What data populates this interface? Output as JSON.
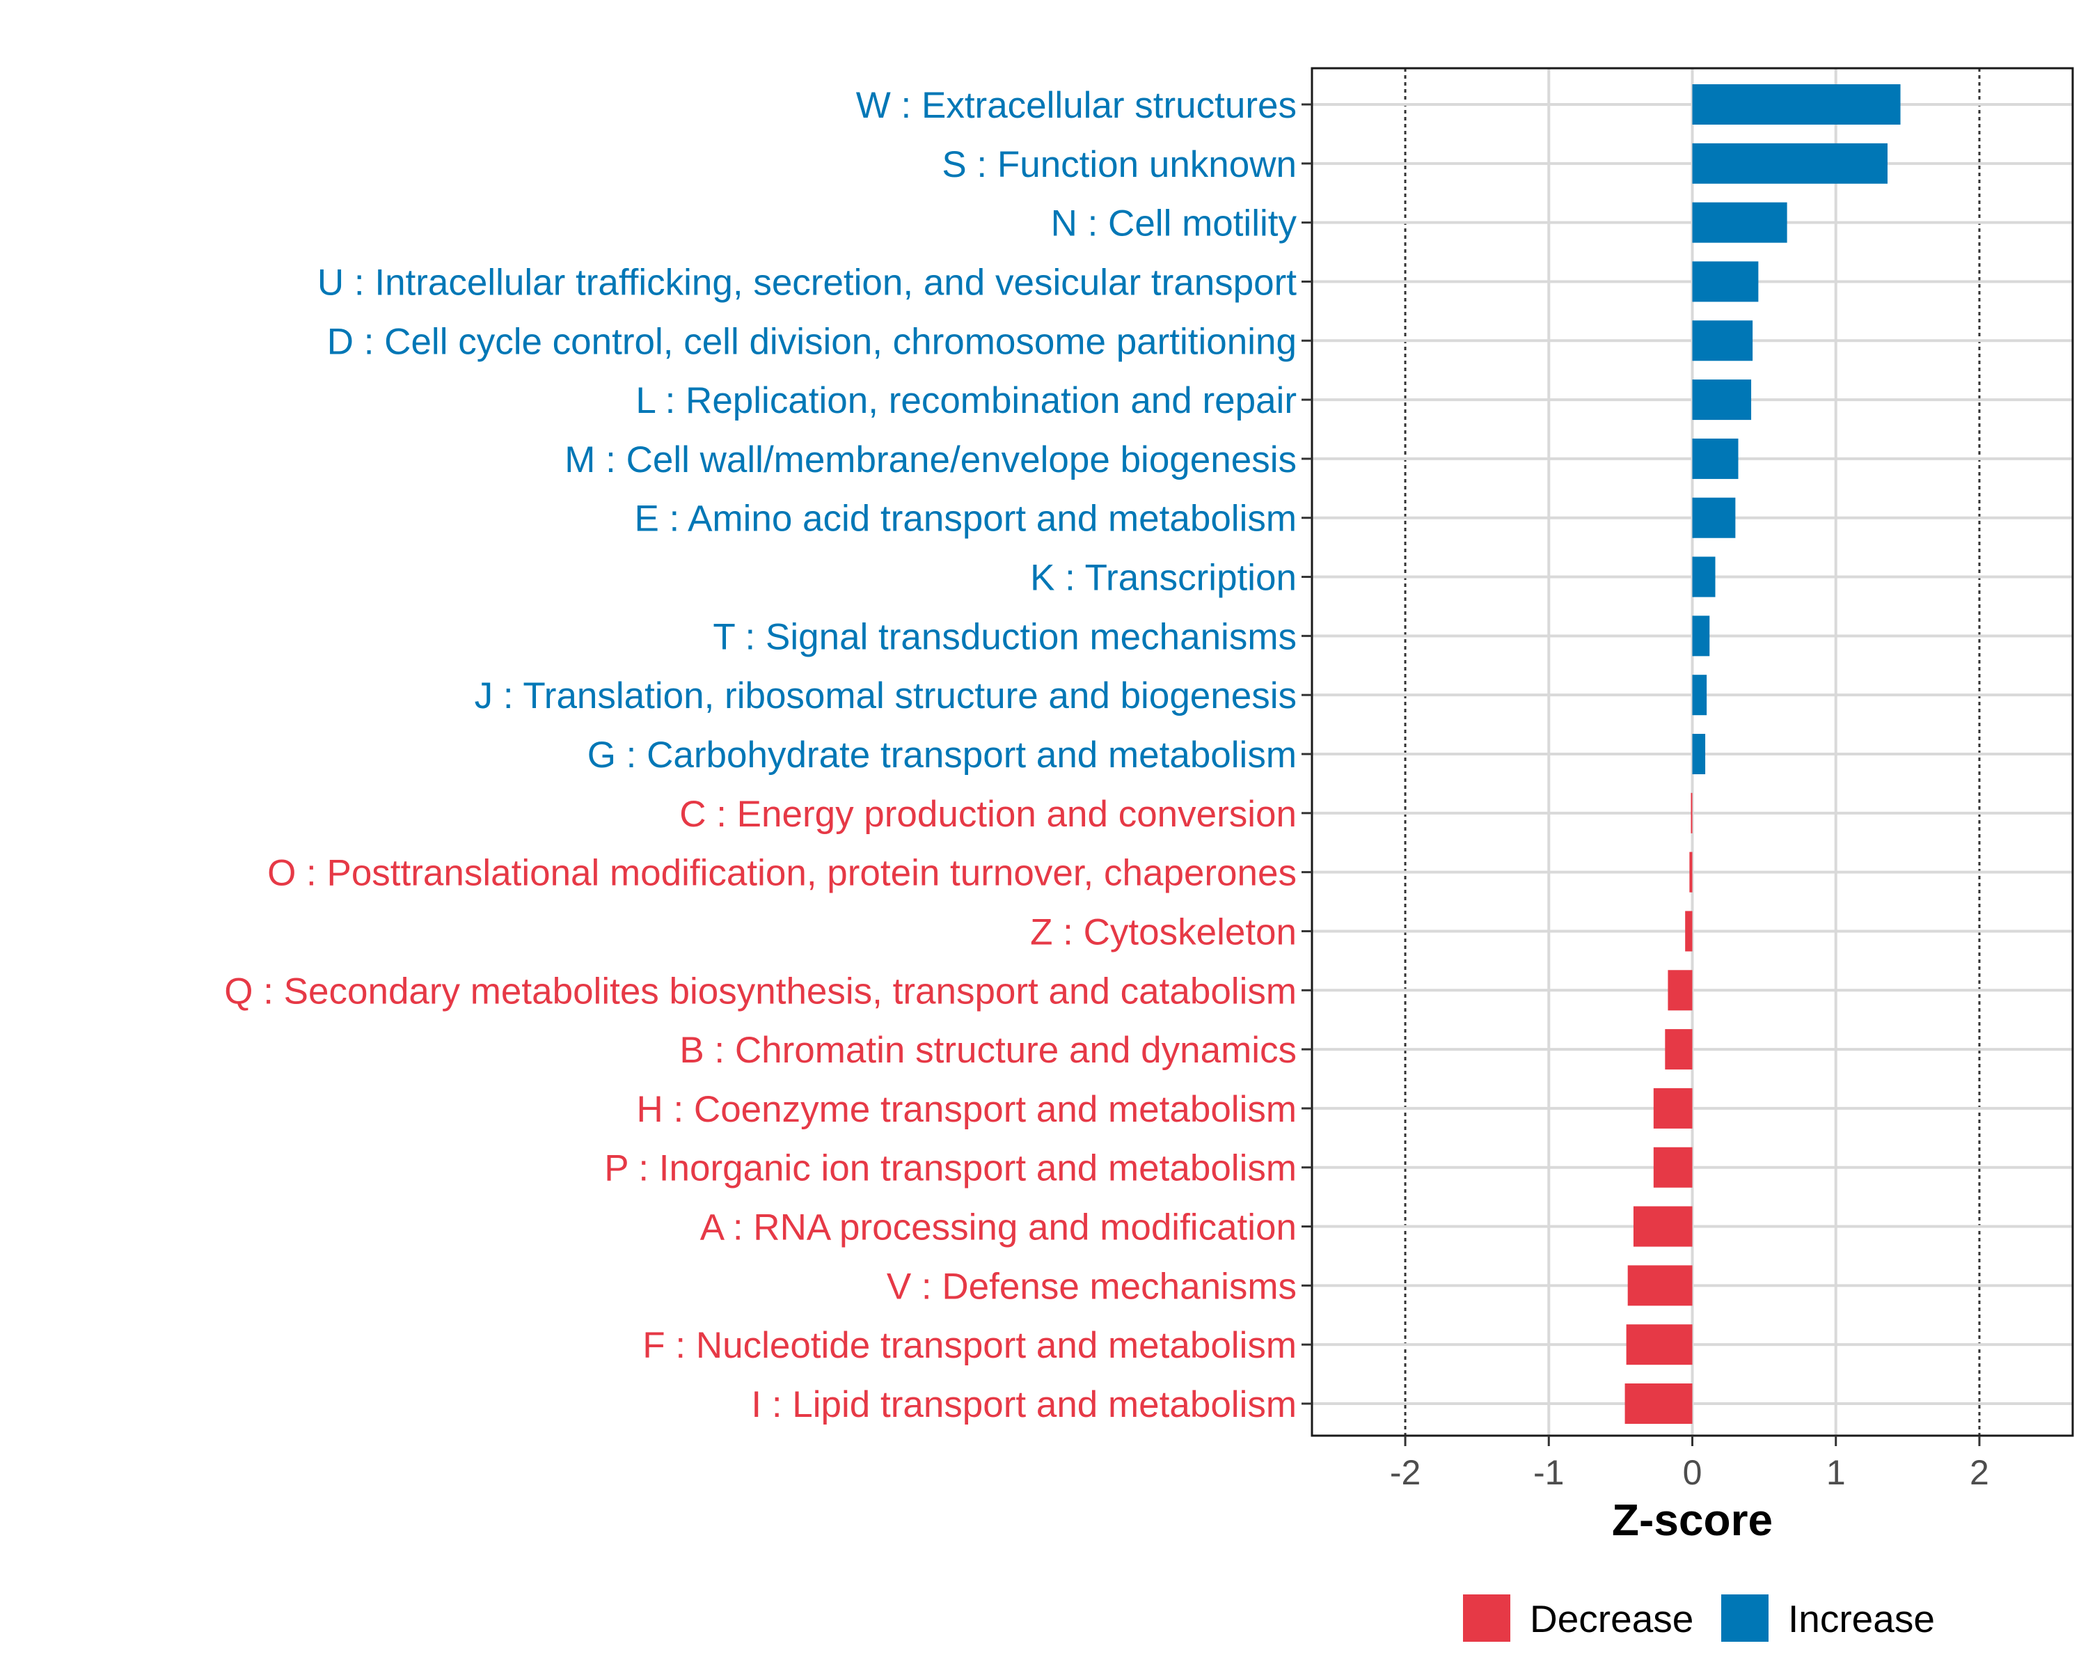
{
  "chart_data": {
    "type": "bar",
    "orientation": "horizontal",
    "title": "",
    "xlabel": "Z-score",
    "ylabel": "",
    "xlim": [
      -2.65,
      2.65
    ],
    "xticks": [
      -2,
      -1,
      0,
      1,
      2
    ],
    "xtick_labels": [
      "-2",
      "-1",
      "0",
      "1",
      "2"
    ],
    "reference_lines": [
      -2,
      2
    ],
    "grid": true,
    "colors": {
      "Decrease": "#e63946",
      "Increase": "#0077b6"
    },
    "legend": {
      "position": "bottom",
      "entries": [
        {
          "label": "Decrease",
          "color": "#e63946"
        },
        {
          "label": "Increase",
          "color": "#0077b6"
        }
      ]
    },
    "categories": [
      "W : Extracellular structures",
      "S : Function unknown",
      "N : Cell motility",
      "U : Intracellular trafficking, secretion, and vesicular transport",
      "D : Cell cycle control, cell division, chromosome partitioning",
      "L : Replication, recombination and repair",
      "M : Cell wall/membrane/envelope biogenesis",
      "E : Amino acid transport and metabolism",
      "K : Transcription",
      "T : Signal transduction mechanisms",
      "J : Translation, ribosomal structure and biogenesis",
      "G : Carbohydrate transport and metabolism",
      "C : Energy production and conversion",
      "O : Posttranslational modification, protein turnover, chaperones",
      "Z : Cytoskeleton",
      "Q : Secondary metabolites biosynthesis, transport and catabolism",
      "B : Chromatin structure and dynamics",
      "H : Coenzyme transport and metabolism",
      "P : Inorganic ion transport and metabolism",
      "A : RNA processing and modification",
      "V : Defense mechanisms",
      "F : Nucleotide transport and metabolism",
      "I : Lipid transport and metabolism"
    ],
    "values": [
      1.45,
      1.36,
      0.66,
      0.46,
      0.42,
      0.41,
      0.32,
      0.3,
      0.16,
      0.12,
      0.1,
      0.09,
      -0.01,
      -0.02,
      -0.05,
      -0.17,
      -0.19,
      -0.27,
      -0.27,
      -0.41,
      -0.45,
      -0.46,
      -0.47
    ],
    "groups": [
      "Increase",
      "Increase",
      "Increase",
      "Increase",
      "Increase",
      "Increase",
      "Increase",
      "Increase",
      "Increase",
      "Increase",
      "Increase",
      "Increase",
      "Decrease",
      "Decrease",
      "Decrease",
      "Decrease",
      "Decrease",
      "Decrease",
      "Decrease",
      "Decrease",
      "Decrease",
      "Decrease",
      "Decrease"
    ]
  }
}
